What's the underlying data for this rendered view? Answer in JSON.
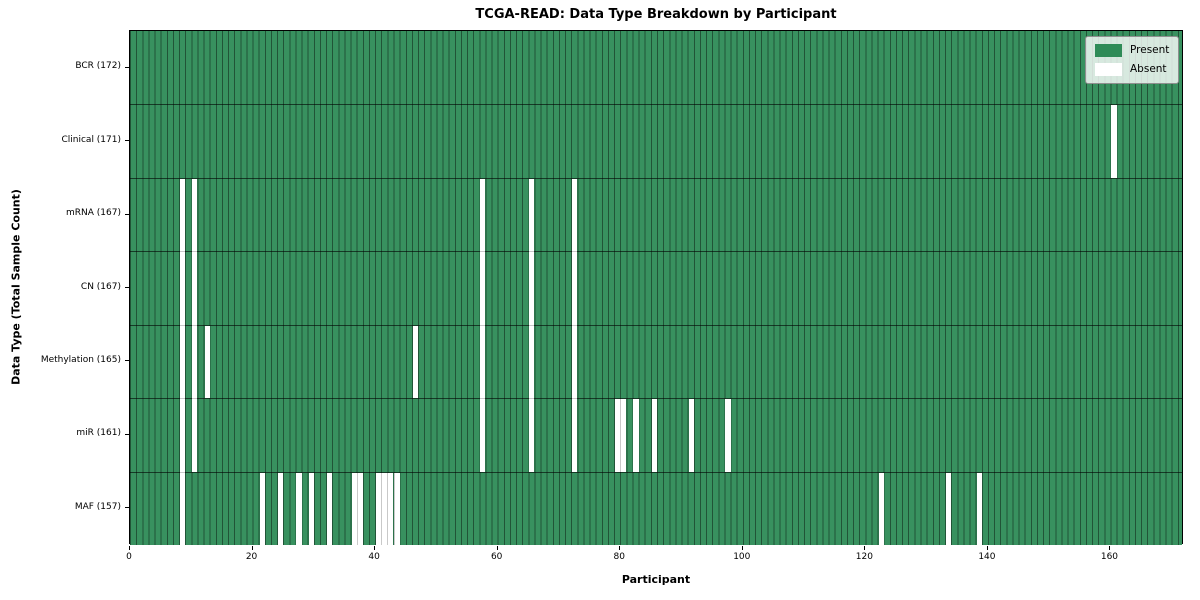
{
  "title": "TCGA-READ: Data Type Breakdown by Participant",
  "axes": {
    "xlabel": "Participant",
    "ylabel": "Data Type (Total Sample Count)"
  },
  "legend": {
    "present_label": "Present",
    "absent_label": "Absent"
  },
  "chart_data": {
    "type": "heatmap",
    "title": "TCGA-READ: Data Type Breakdown by Participant",
    "xlabel": "Participant",
    "ylabel": "Data Type (Total Sample Count)",
    "n_participants": 172,
    "x_ticks": [
      0,
      20,
      40,
      60,
      80,
      100,
      120,
      140,
      160
    ],
    "grid": true,
    "legend_position": "upper right",
    "cell_present_color": "#38915f",
    "cell_absent_color": "#ffffff",
    "gridline_color": "rgba(0,0,0,0.42)",
    "legend_entries": [
      {
        "label": "Present",
        "color": "#2e8b57"
      },
      {
        "label": "Absent",
        "color": "#ffffff"
      }
    ],
    "rows": [
      {
        "label": "BCR (172)",
        "data_type": "BCR",
        "total_sample_count": 172,
        "absent_participants": []
      },
      {
        "label": "Clinical (171)",
        "data_type": "Clinical",
        "total_sample_count": 171,
        "absent_participants": [
          160
        ]
      },
      {
        "label": "mRNA (167)",
        "data_type": "mRNA",
        "total_sample_count": 167,
        "absent_participants": [
          8,
          10,
          57,
          65,
          72
        ]
      },
      {
        "label": "CN (167)",
        "data_type": "CN",
        "total_sample_count": 167,
        "absent_participants": [
          8,
          10,
          57,
          65,
          72
        ]
      },
      {
        "label": "Methylation (165)",
        "data_type": "Methylation",
        "total_sample_count": 165,
        "absent_participants": [
          8,
          10,
          12,
          46,
          57,
          65,
          72
        ]
      },
      {
        "label": "miR (161)",
        "data_type": "miR",
        "total_sample_count": 161,
        "absent_participants": [
          8,
          10,
          57,
          65,
          72,
          79,
          80,
          82,
          85,
          91,
          97
        ]
      },
      {
        "label": "MAF (157)",
        "data_type": "MAF",
        "total_sample_count": 157,
        "absent_participants": [
          8,
          21,
          24,
          27,
          29,
          32,
          36,
          37,
          40,
          41,
          42,
          43,
          122,
          133,
          138
        ]
      }
    ]
  }
}
